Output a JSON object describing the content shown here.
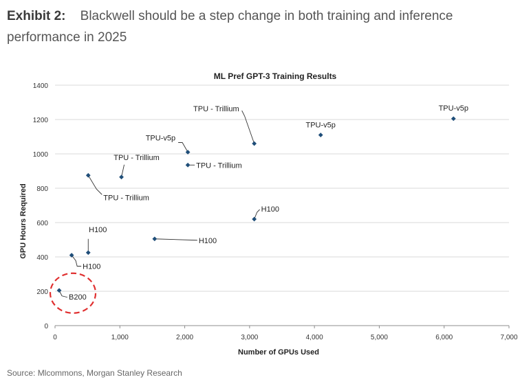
{
  "exhibit": {
    "label": "Exhibit 2:",
    "title": "Blackwell should be a step change in both training and inference performance in 2025"
  },
  "source": "Source: Mlcommons, Morgan Stanley Research",
  "chart_data": {
    "type": "scatter",
    "title": "ML Pref GPT-3 Training Results",
    "xlabel": "Number of GPUs Used",
    "ylabel": "GPU Hours Required",
    "xlim": [
      0,
      7000
    ],
    "ylim": [
      0,
      1400
    ],
    "x_ticks": [
      0,
      1000,
      2000,
      3000,
      4000,
      5000,
      6000,
      7000
    ],
    "x_tick_labels": [
      "0",
      "1,000",
      "2,000",
      "3,000",
      "4,000",
      "5,000",
      "6,000",
      "7,000"
    ],
    "y_ticks": [
      0,
      200,
      400,
      600,
      800,
      1000,
      1200,
      1400
    ],
    "y_tick_labels": [
      "0",
      "200",
      "400",
      "600",
      "800",
      "1000",
      "1200",
      "1400"
    ],
    "grid": "horizontal",
    "marker_color": "#1f4e79",
    "points": [
      {
        "x": 64,
        "y": 205,
        "label": "B200"
      },
      {
        "x": 256,
        "y": 410,
        "label": "H100"
      },
      {
        "x": 512,
        "y": 425,
        "label": "H100"
      },
      {
        "x": 512,
        "y": 875,
        "label": "TPU - Trillium"
      },
      {
        "x": 1024,
        "y": 865,
        "label": "TPU - Trillium"
      },
      {
        "x": 1536,
        "y": 505,
        "label": "H100"
      },
      {
        "x": 2048,
        "y": 1010,
        "label": "TPU-v5p"
      },
      {
        "x": 2048,
        "y": 935,
        "label": "TPU - Trillium"
      },
      {
        "x": 3072,
        "y": 1060,
        "label": "TPU - Trillium"
      },
      {
        "x": 3072,
        "y": 620,
        "label": "H100"
      },
      {
        "x": 4096,
        "y": 1110,
        "label": "TPU-v5p"
      },
      {
        "x": 6144,
        "y": 1205,
        "label": "TPU-v5p"
      }
    ],
    "highlight": {
      "point_index": 0,
      "style": "dashed-circle",
      "color": "#e03030"
    }
  }
}
